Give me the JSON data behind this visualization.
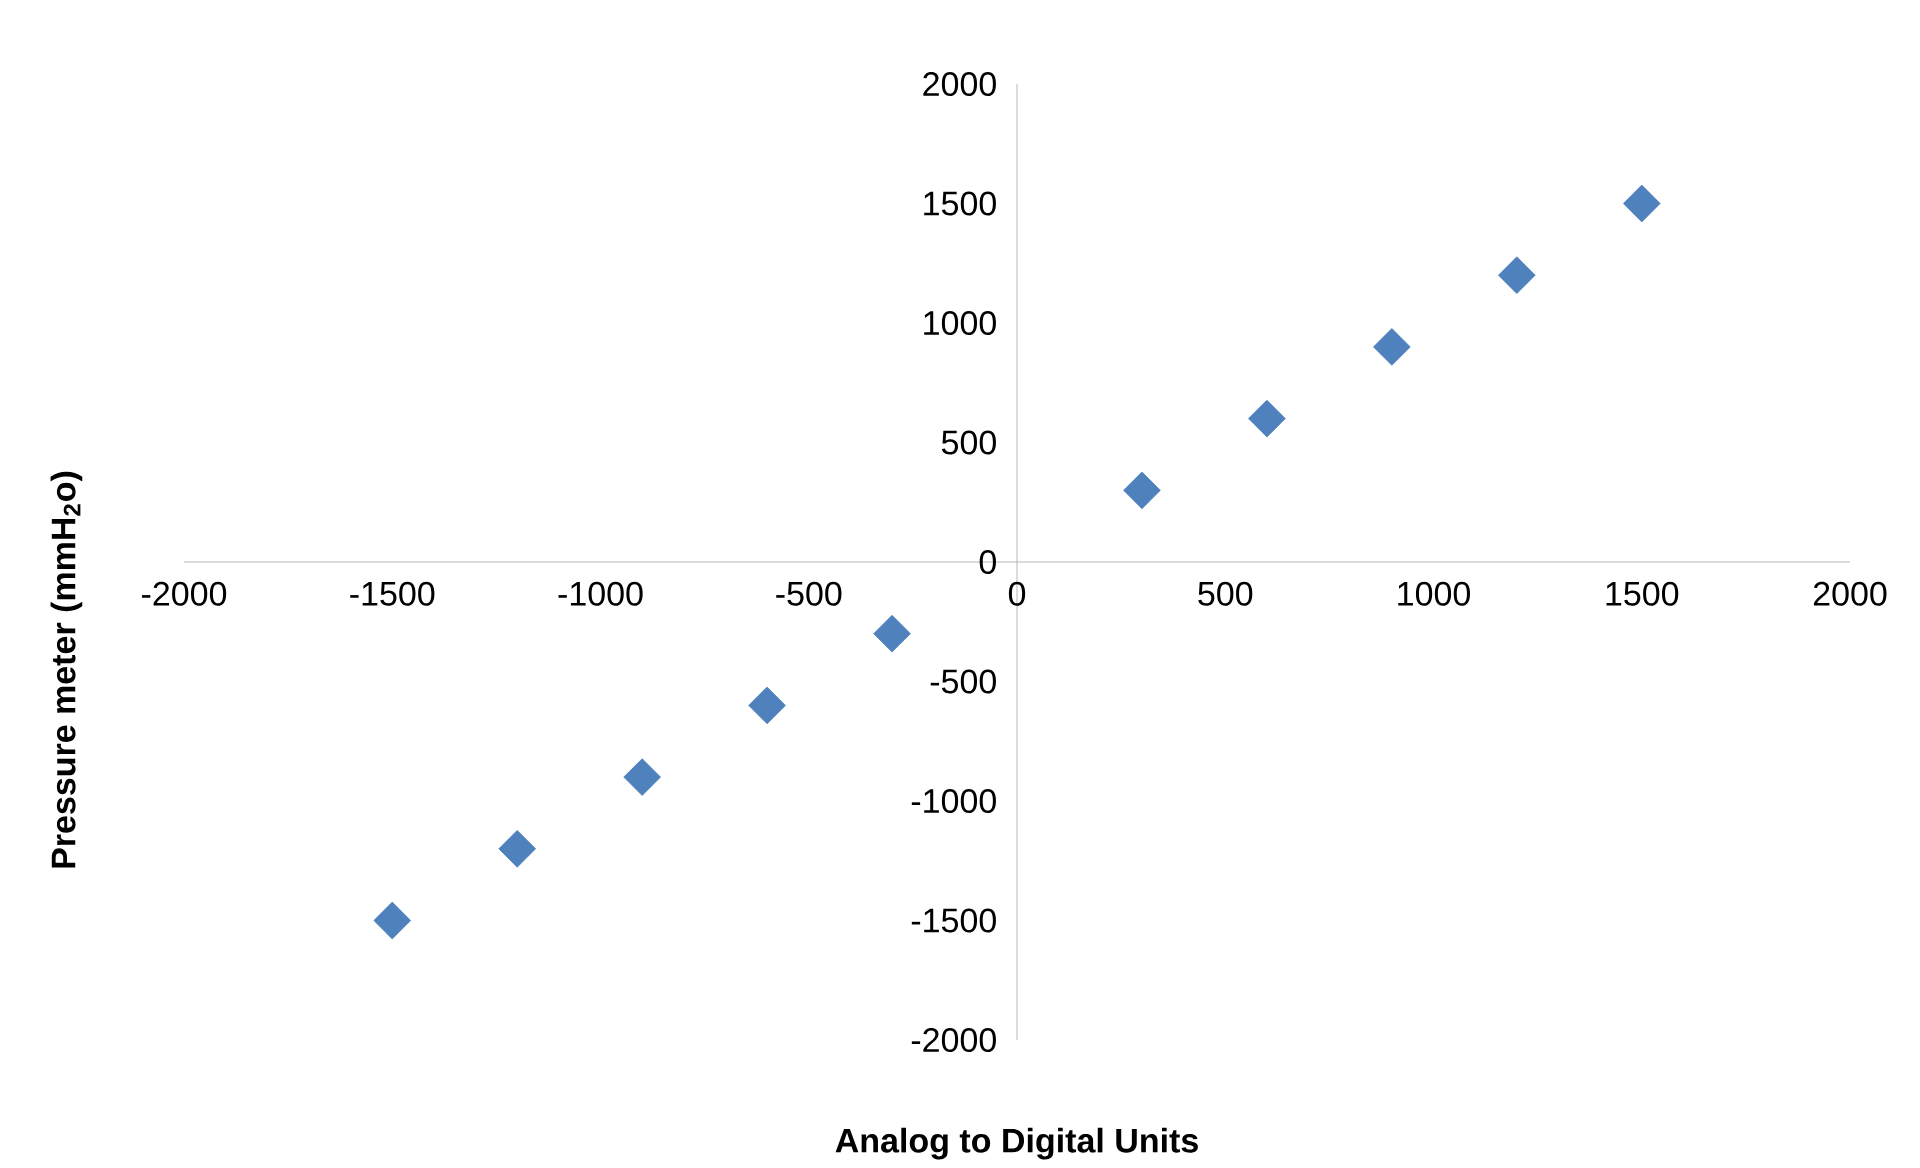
{
  "chart_data": {
    "type": "scatter",
    "xlabel": "Analog to Digital Units",
    "ylabel": "Pressure meter (mmH$_{2}$o)",
    "x": [
      -1500,
      -1200,
      -900,
      -600,
      -300,
      300,
      600,
      900,
      1200,
      1500
    ],
    "values": [
      -1500,
      -1200,
      -900,
      -600,
      -300,
      300,
      600,
      900,
      1200,
      1500
    ],
    "color": "#4f81bd",
    "marker": "diamond",
    "grid": false,
    "xlim": [
      -2000,
      2000
    ],
    "ylim": [
      -2000,
      2000
    ],
    "xticks": [
      -2000,
      -1500,
      -1000,
      -500,
      0,
      500,
      1000,
      1500,
      2000
    ],
    "yticks": [
      -2000,
      -1500,
      -1000,
      -500,
      0,
      500,
      1000,
      1500,
      2000
    ]
  }
}
